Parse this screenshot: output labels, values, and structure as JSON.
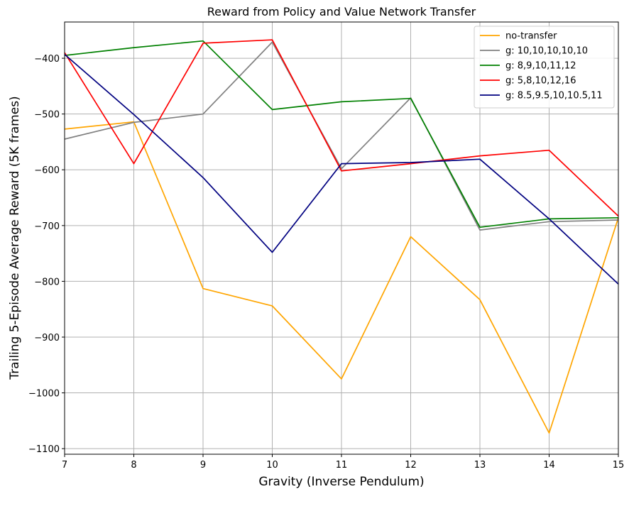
{
  "chart_data": {
    "type": "line",
    "title": "Reward from Policy and Value Network Transfer",
    "xlabel": "Gravity (Inverse Pendulum)",
    "ylabel": "Trailing 5-Episode Average Reward (5K frames)",
    "xlim": [
      7,
      15
    ],
    "ylim": [
      -1110,
      -335
    ],
    "xticks": [
      7,
      8,
      9,
      10,
      11,
      12,
      13,
      14,
      15
    ],
    "yticks": [
      -1100,
      -1000,
      -900,
      -800,
      -700,
      -600,
      -500,
      -400
    ],
    "grid": true,
    "legend_position": "top-right",
    "x": [
      7,
      8,
      9,
      10,
      11,
      12,
      13,
      14,
      15
    ],
    "series": [
      {
        "name": "no-transfer",
        "color": "#ffa500",
        "values": [
          -527,
          -514,
          -813,
          -844,
          -975,
          -720,
          -833,
          -1072,
          -686
        ]
      },
      {
        "name": "g: 10,10,10,10,10",
        "color": "#808080",
        "values": [
          -545,
          -515,
          -500,
          -371,
          -598,
          -471,
          -708,
          -693,
          -690
        ]
      },
      {
        "name": "g: 8,9,10,11,12",
        "color": "#008000",
        "values": [
          -395,
          -381,
          -369,
          -492,
          -478,
          -472,
          -703,
          -688,
          -686
        ]
      },
      {
        "name": "g: 5,8,10,12,16",
        "color": "#ff0000",
        "values": [
          -390,
          -589,
          -373,
          -367,
          -602,
          -589,
          -575,
          -565,
          -683
        ]
      },
      {
        "name": "g: 8.5,9.5,10,10.5,11",
        "color": "#000080",
        "values": [
          -393,
          -501,
          -614,
          -748,
          -589,
          -587,
          -581,
          -688,
          -805
        ]
      }
    ]
  }
}
